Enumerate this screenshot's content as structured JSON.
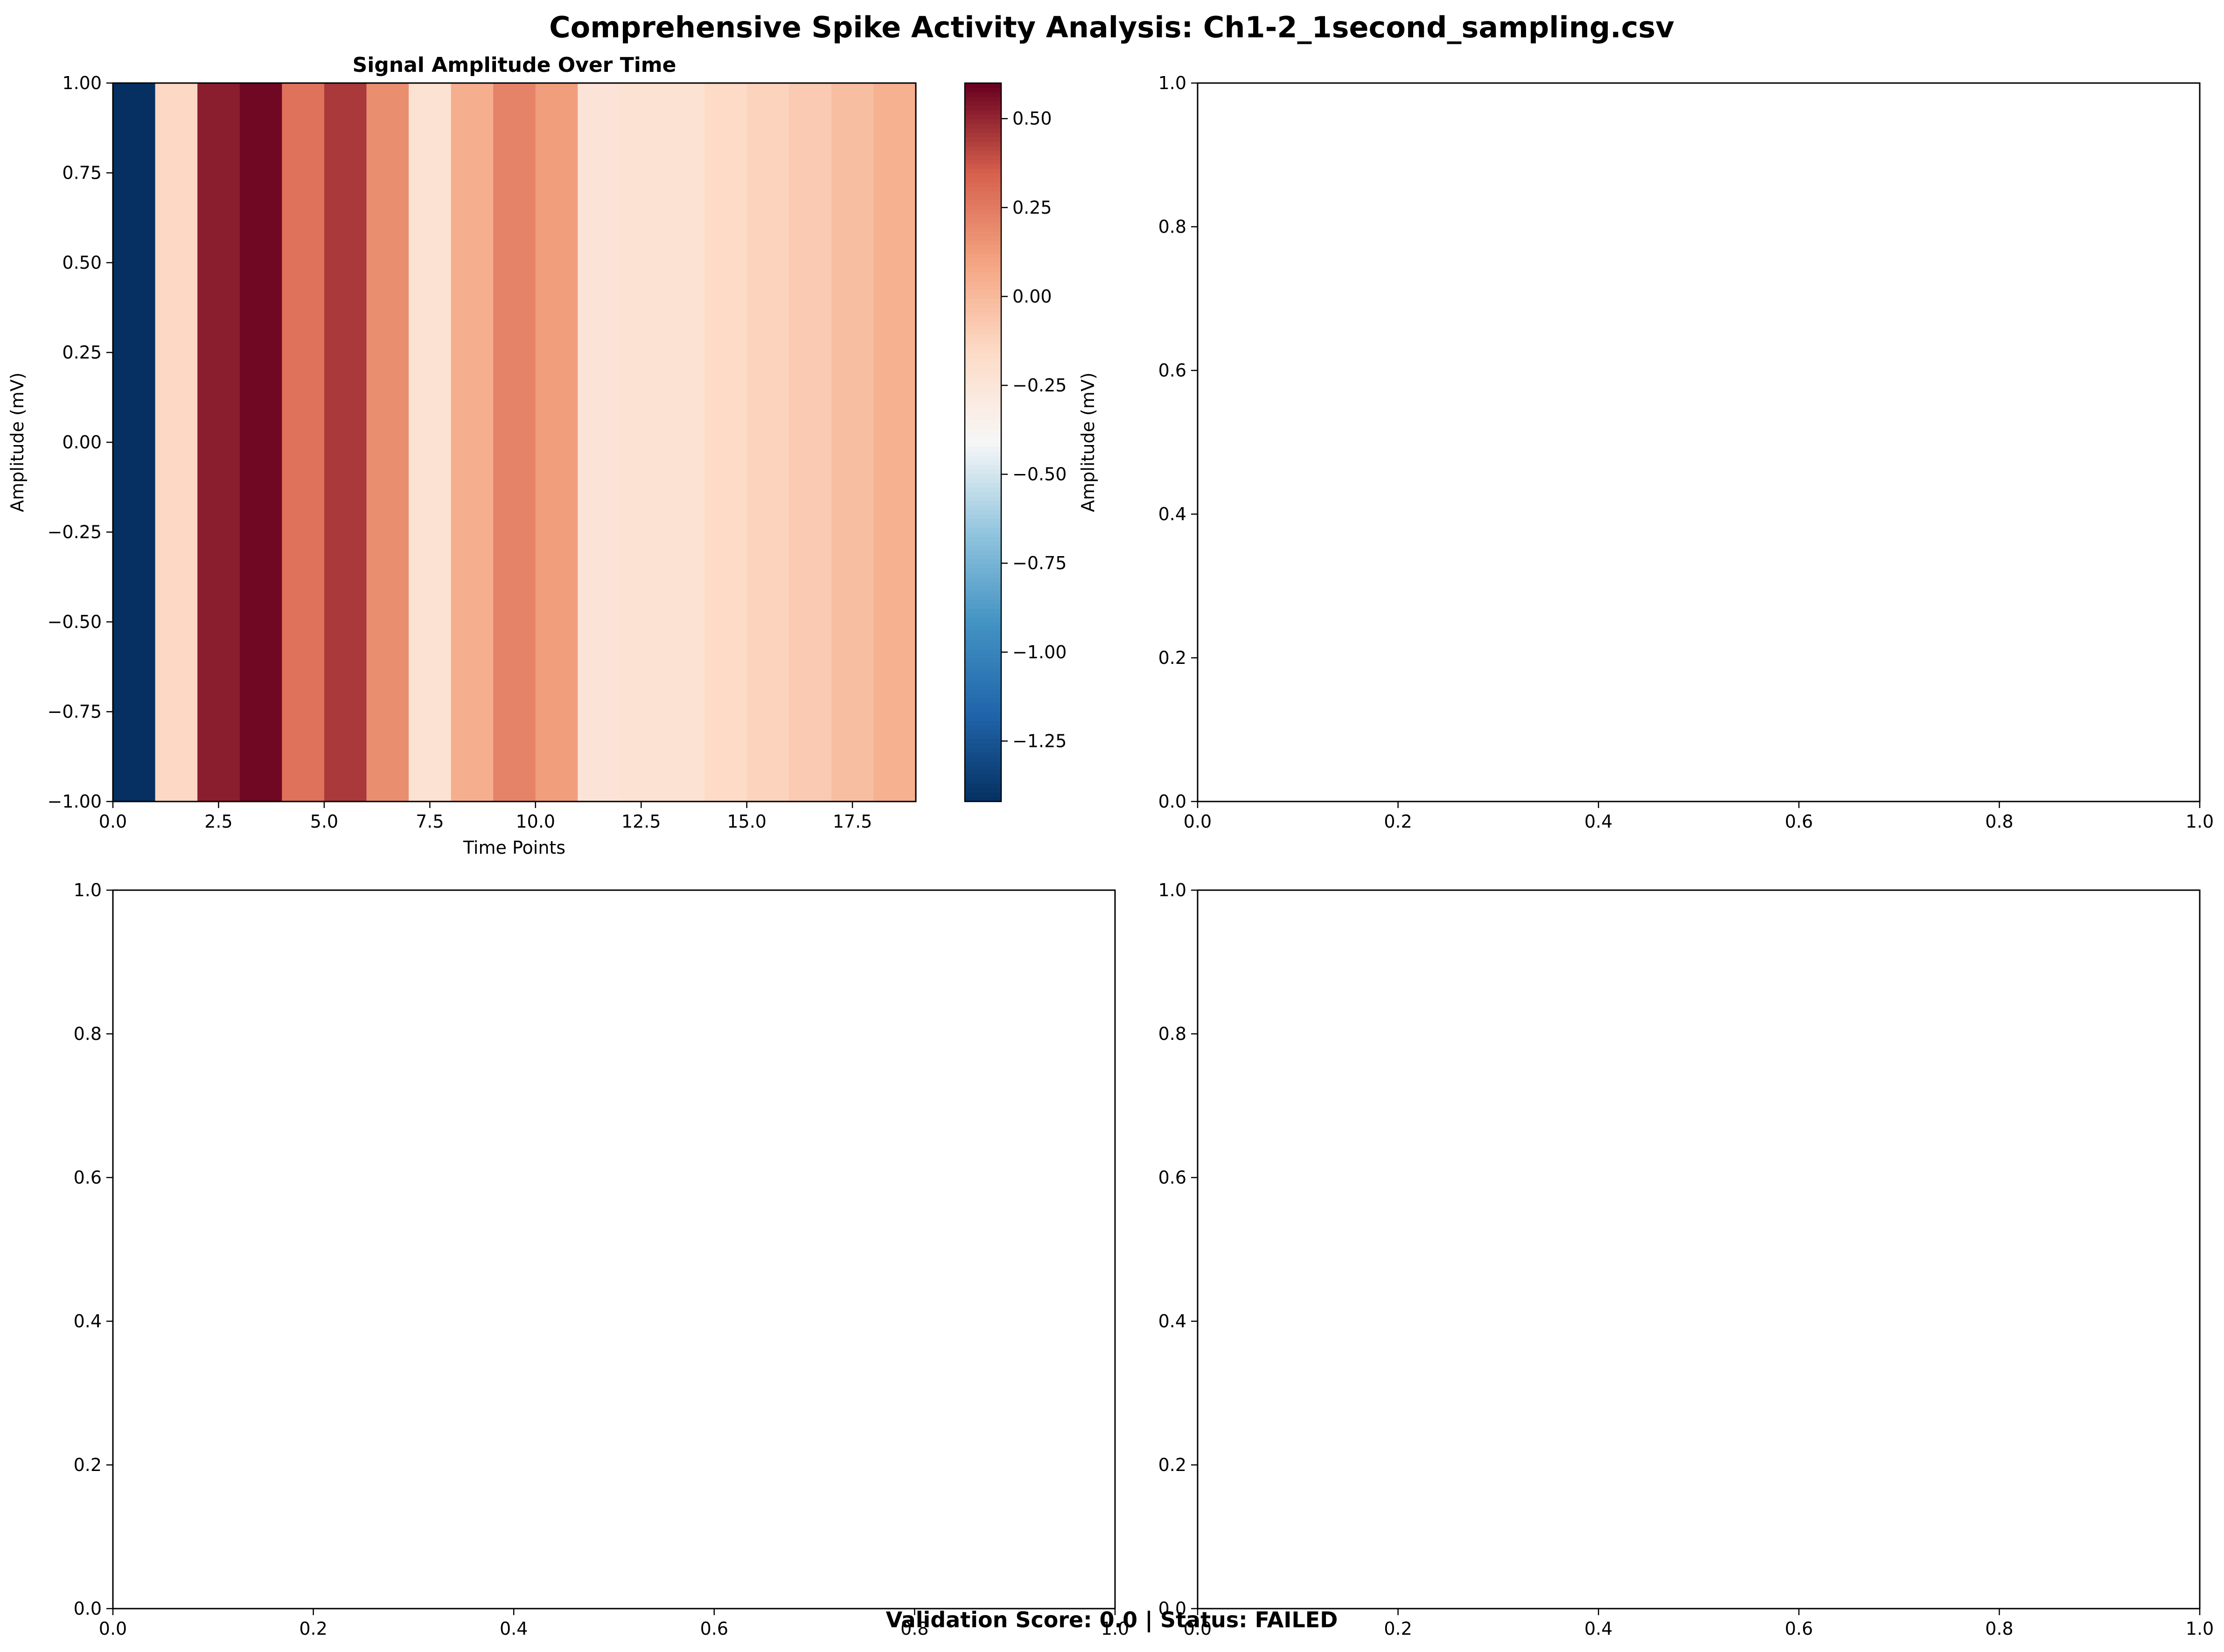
{
  "figure": {
    "suptitle": "Comprehensive Spike Activity Analysis: Ch1-2_1second_sampling.csv",
    "footer": "Validation Score: 0.0 | Status: FAILED",
    "footer_color": "#e41a1c"
  },
  "chart_data": [
    {
      "type": "heatmap",
      "title": "Signal Amplitude Over Time",
      "xlabel": "Time Points",
      "ylabel": "Amplitude (mV)",
      "xlim": [
        0,
        19
      ],
      "ylim": [
        -1,
        1
      ],
      "x_ticks": [
        "0.0",
        "2.5",
        "5.0",
        "7.5",
        "10.0",
        "12.5",
        "15.0",
        "17.5"
      ],
      "y_ticks": [
        "1.00",
        "0.75",
        "0.50",
        "0.25",
        "0.00",
        "−0.25",
        "−0.50",
        "−0.75",
        "−1.00"
      ],
      "colormap": "RdBu_r",
      "color_range": [
        -1.42,
        0.6
      ],
      "values": [
        -1.42,
        -0.15,
        0.52,
        0.58,
        0.28,
        0.45,
        0.18,
        -0.22,
        0.05,
        0.22,
        0.12,
        -0.24,
        -0.22,
        -0.22,
        -0.16,
        -0.12,
        -0.08,
        -0.02,
        0.04
      ],
      "colorbar": {
        "label": "Amplitude (mV)",
        "ticks": [
          "0.50",
          "0.25",
          "0.00",
          "−0.25",
          "−0.50",
          "−0.75",
          "−1.00",
          "−1.25"
        ]
      }
    },
    {
      "type": "scatter",
      "empty": true,
      "xlim": [
        0,
        1
      ],
      "ylim": [
        0,
        1
      ],
      "x_ticks": [
        "0.0",
        "0.2",
        "0.4",
        "0.6",
        "0.8",
        "1.0"
      ],
      "y_ticks": [
        "0.0",
        "0.2",
        "0.4",
        "0.6",
        "0.8",
        "1.0"
      ]
    },
    {
      "type": "scatter",
      "empty": true,
      "xlim": [
        0,
        1
      ],
      "ylim": [
        0,
        1
      ],
      "x_ticks": [
        "0.0",
        "0.2",
        "0.4",
        "0.6",
        "0.8",
        "1.0"
      ],
      "y_ticks": [
        "0.0",
        "0.2",
        "0.4",
        "0.6",
        "0.8",
        "1.0"
      ]
    },
    {
      "type": "scatter",
      "empty": true,
      "xlim": [
        0,
        1
      ],
      "ylim": [
        0,
        1
      ],
      "x_ticks": [
        "0.0",
        "0.2",
        "0.4",
        "0.6",
        "0.8",
        "1.0"
      ],
      "y_ticks": [
        "0.0",
        "0.2",
        "0.4",
        "0.6",
        "0.8",
        "1.0"
      ]
    }
  ]
}
